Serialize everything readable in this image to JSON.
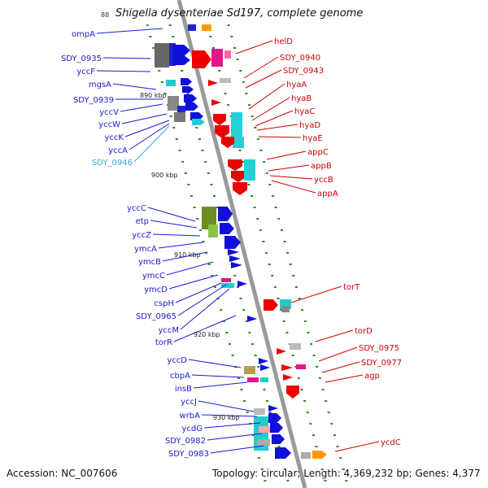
{
  "title": "Shigella dysenteriae Sd197, complete genome",
  "title_fragment": "88",
  "accession": "Accession: NC_007606",
  "summary": "Topology: circular; Length: 4,369,232 bp; Genes: 4,377",
  "colors": {
    "left_label": "#1a1ad6",
    "right_label": "#d10000",
    "highlight_label": "#3aa6d8",
    "backbone": "#9a9a9a",
    "tick": "#1f8a1f"
  },
  "ticks": [
    "890 kbp",
    "900 kbp",
    "910 kbp",
    "920 kbp",
    "930 kbp"
  ],
  "left_genes": [
    "ompA",
    "SDY_0935",
    "yccF",
    "mgsA",
    "SDY_0939",
    "yccV",
    "yccW",
    "yccK",
    "yccA",
    "SDY_0946",
    "yccC",
    "etp",
    "yccZ",
    "ymcA",
    "ymcB",
    "ymcC",
    "ymcD",
    "cspH",
    "SDY_0965",
    "yccM",
    "torR",
    "yccD",
    "cbpA",
    "insB",
    "yccJ",
    "wrbA",
    "ycdG",
    "SDY_0982",
    "SDY_0983"
  ],
  "right_genes": [
    "helD",
    "SDY_0940",
    "SDY_0943",
    "hyaA",
    "hyaB",
    "hyaC",
    "hyaD",
    "hyaE",
    "appC",
    "appB",
    "yccB",
    "appA",
    "torT",
    "torD",
    "SDY_0975",
    "SDY_0977",
    "agp",
    "ycdC"
  ]
}
